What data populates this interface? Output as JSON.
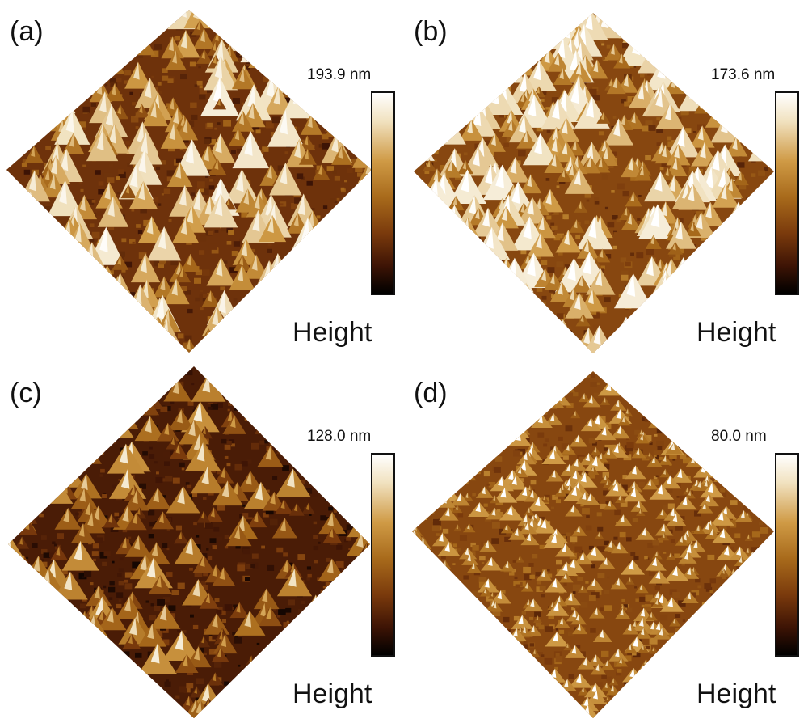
{
  "panels": [
    {
      "letter": "(a)",
      "max_height": "193.9 nm",
      "scale_label": "Height",
      "surface": {
        "roughness": 1.0,
        "peak_density": "medium",
        "tone": "brown"
      }
    },
    {
      "letter": "(b)",
      "max_height": "173.6 nm",
      "scale_label": "Height",
      "surface": {
        "roughness": 0.85,
        "peak_density": "high",
        "tone": "amber"
      }
    },
    {
      "letter": "(c)",
      "max_height": "128.0 nm",
      "scale_label": "Height",
      "surface": {
        "roughness": 0.7,
        "peak_density": "low",
        "tone": "dark-brown"
      }
    },
    {
      "letter": "(d)",
      "max_height": "80.0 nm",
      "scale_label": "Height",
      "surface": {
        "roughness": 0.45,
        "peak_density": "very-high",
        "tone": "amber"
      }
    }
  ],
  "colormap": [
    "#000000",
    "#3e1405",
    "#7a3a0c",
    "#a86a1b",
    "#cf9a45",
    "#f1e2c0",
    "#ffffff"
  ]
}
